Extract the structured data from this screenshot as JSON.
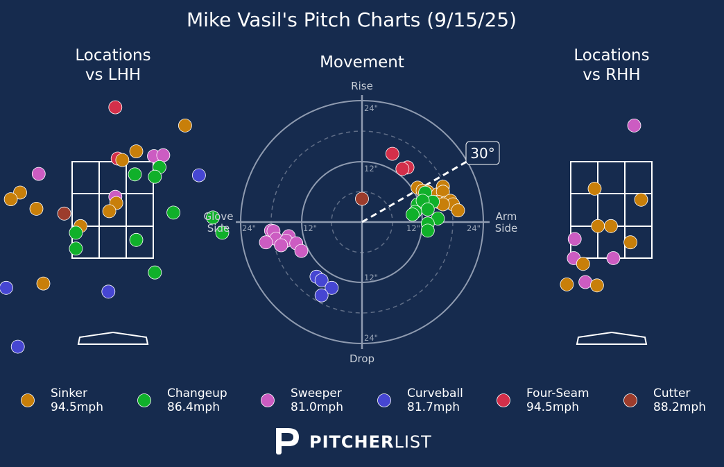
{
  "chart_data": {
    "type": "scatter",
    "title": "Mike Vasil's Pitch Charts (9/15/25)",
    "colors": {
      "background": "#162b4e",
      "Sinker": "#c87f0a",
      "Changeup": "#10b02a",
      "Sweeper": "#cc5cc2",
      "Curveball": "#4646d2",
      "Four-Seam": "#d32f4a",
      "Cutter": "#9c3c2c"
    },
    "legend": [
      {
        "pitch": "Sinker",
        "velo": "94.5mph"
      },
      {
        "pitch": "Changeup",
        "velo": "86.4mph"
      },
      {
        "pitch": "Sweeper",
        "velo": "81.0mph"
      },
      {
        "pitch": "Curveball",
        "velo": "81.7mph"
      },
      {
        "pitch": "Four-Seam",
        "velo": "94.5mph"
      },
      {
        "pitch": "Cutter",
        "velo": "88.2mph"
      }
    ],
    "brand": {
      "bold": "PITCHER",
      "light": "LIST"
    },
    "locations_lhh": {
      "title_line1": "Locations",
      "title_line2": "vs LHH",
      "points": [
        {
          "pitch": "Four-Seam",
          "x": 0.05,
          "y": 4.65
        },
        {
          "pitch": "Sinker",
          "x": 1.55,
          "y": 4.27
        },
        {
          "pitch": "Sinker",
          "x": 0.5,
          "y": 3.73
        },
        {
          "pitch": "Sweeper",
          "x": 0.88,
          "y": 3.63
        },
        {
          "pitch": "Sweeper",
          "x": 1.08,
          "y": 3.65
        },
        {
          "pitch": "Four-Seam",
          "x": 0.1,
          "y": 3.58
        },
        {
          "pitch": "Sinker",
          "x": 0.2,
          "y": 3.55
        },
        {
          "pitch": "Changeup",
          "x": 1.0,
          "y": 3.4
        },
        {
          "pitch": "Changeup",
          "x": 0.47,
          "y": 3.25
        },
        {
          "pitch": "Changeup",
          "x": 0.9,
          "y": 3.2
        },
        {
          "pitch": "Sweeper",
          "x": -1.6,
          "y": 3.26
        },
        {
          "pitch": "Curveball",
          "x": 1.85,
          "y": 3.23
        },
        {
          "pitch": "Sinker",
          "x": -2.0,
          "y": 2.87
        },
        {
          "pitch": "Sinker",
          "x": -2.2,
          "y": 2.73
        },
        {
          "pitch": "Sweeper",
          "x": 0.05,
          "y": 2.78
        },
        {
          "pitch": "Sinker",
          "x": 0.07,
          "y": 2.65
        },
        {
          "pitch": "Sinker",
          "x": -1.65,
          "y": 2.53
        },
        {
          "pitch": "Sinker",
          "x": -0.08,
          "y": 2.48
        },
        {
          "pitch": "Cutter",
          "x": -1.05,
          "y": 2.43
        },
        {
          "pitch": "Changeup",
          "x": 1.3,
          "y": 2.45
        },
        {
          "pitch": "Changeup",
          "x": 2.15,
          "y": 2.35
        },
        {
          "pitch": "Sinker",
          "x": -0.7,
          "y": 2.17
        },
        {
          "pitch": "Changeup",
          "x": -0.8,
          "y": 2.03
        },
        {
          "pitch": "Changeup",
          "x": 2.35,
          "y": 2.03
        },
        {
          "pitch": "Changeup",
          "x": 0.5,
          "y": 1.88
        },
        {
          "pitch": "Changeup",
          "x": -0.8,
          "y": 1.7
        },
        {
          "pitch": "Changeup",
          "x": 0.9,
          "y": 1.2
        },
        {
          "pitch": "Sinker",
          "x": -1.5,
          "y": 0.97
        },
        {
          "pitch": "Curveball",
          "x": -2.3,
          "y": 0.88
        },
        {
          "pitch": "Curveball",
          "x": -0.1,
          "y": 0.8
        },
        {
          "pitch": "Curveball",
          "x": -2.05,
          "y": -0.35
        }
      ]
    },
    "movement": {
      "title": "Movement",
      "labels": {
        "top": "Rise",
        "bottom": "Drop",
        "left_line1": "Glove",
        "left_line2": "Side",
        "right_line1": "Arm",
        "right_line2": "Side"
      },
      "ring_labels": {
        "r12": "12\"",
        "r24": "24\""
      },
      "arm_angle": 30,
      "arm_angle_label": "30°",
      "points": [
        {
          "pitch": "Four-Seam",
          "x": 6.0,
          "y": 13.5
        },
        {
          "pitch": "Four-Seam",
          "x": 9.0,
          "y": 10.8
        },
        {
          "pitch": "Four-Seam",
          "x": 8.0,
          "y": 10.5
        },
        {
          "pitch": "Cutter",
          "x": 0.0,
          "y": 4.6
        },
        {
          "pitch": "Sinker",
          "x": 11.0,
          "y": 6.8
        },
        {
          "pitch": "Sinker",
          "x": 12.0,
          "y": 6.2
        },
        {
          "pitch": "Sinker",
          "x": 13.0,
          "y": 6.0
        },
        {
          "pitch": "Sinker",
          "x": 15.0,
          "y": 5.5
        },
        {
          "pitch": "Sinker",
          "x": 16.0,
          "y": 7.0
        },
        {
          "pitch": "Sinker",
          "x": 16.0,
          "y": 6.0
        },
        {
          "pitch": "Sinker",
          "x": 15.0,
          "y": 4.0
        },
        {
          "pitch": "Sinker",
          "x": 16.5,
          "y": 3.8
        },
        {
          "pitch": "Sinker",
          "x": 17.5,
          "y": 4.2
        },
        {
          "pitch": "Sinker",
          "x": 18.0,
          "y": 3.5
        },
        {
          "pitch": "Sinker",
          "x": 19.0,
          "y": 2.3
        },
        {
          "pitch": "Sinker",
          "x": 16.0,
          "y": 3.5
        },
        {
          "pitch": "Changeup",
          "x": 12.5,
          "y": 5.8
        },
        {
          "pitch": "Changeup",
          "x": 14.0,
          "y": 4.0
        },
        {
          "pitch": "Changeup",
          "x": 11.0,
          "y": 3.5
        },
        {
          "pitch": "Changeup",
          "x": 12.0,
          "y": 4.2
        },
        {
          "pitch": "Changeup",
          "x": 13.0,
          "y": 2.5
        },
        {
          "pitch": "Changeup",
          "x": 10.5,
          "y": 2.0
        },
        {
          "pitch": "Changeup",
          "x": 10.0,
          "y": 1.5
        },
        {
          "pitch": "Changeup",
          "x": 15.0,
          "y": 0.7
        },
        {
          "pitch": "Changeup",
          "x": 13.0,
          "y": -0.3
        },
        {
          "pitch": "Changeup",
          "x": 13.0,
          "y": -1.7
        },
        {
          "pitch": "Sweeper",
          "x": -18.0,
          "y": -1.7
        },
        {
          "pitch": "Sweeper",
          "x": -17.5,
          "y": -1.8
        },
        {
          "pitch": "Sweeper",
          "x": -14.5,
          "y": -2.8
        },
        {
          "pitch": "Sweeper",
          "x": -17.0,
          "y": -3.3
        },
        {
          "pitch": "Sweeper",
          "x": -15.0,
          "y": -3.7
        },
        {
          "pitch": "Sweeper",
          "x": -13.0,
          "y": -4.2
        },
        {
          "pitch": "Sweeper",
          "x": -16.0,
          "y": -4.6
        },
        {
          "pitch": "Sweeper",
          "x": -19.0,
          "y": -4.0
        },
        {
          "pitch": "Sweeper",
          "x": -12.0,
          "y": -5.7
        },
        {
          "pitch": "Curveball",
          "x": -9.0,
          "y": -10.8
        },
        {
          "pitch": "Curveball",
          "x": -8.0,
          "y": -11.5
        },
        {
          "pitch": "Curveball",
          "x": -6.0,
          "y": -13.0
        },
        {
          "pitch": "Curveball",
          "x": -8.0,
          "y": -14.5
        }
      ]
    },
    "locations_rhh": {
      "title_line1": "Locations",
      "title_line2": "vs RHH",
      "points": [
        {
          "pitch": "Sweeper",
          "x": 0.5,
          "y": 4.27
        },
        {
          "pitch": "Sinker",
          "x": -0.35,
          "y": 2.95
        },
        {
          "pitch": "Sinker",
          "x": 0.65,
          "y": 2.72
        },
        {
          "pitch": "Sinker",
          "x": -0.28,
          "y": 2.17
        },
        {
          "pitch": "Sinker",
          "x": 0.0,
          "y": 2.17
        },
        {
          "pitch": "Sweeper",
          "x": -0.78,
          "y": 1.9
        },
        {
          "pitch": "Sinker",
          "x": 0.42,
          "y": 1.83
        },
        {
          "pitch": "Sweeper",
          "x": -0.8,
          "y": 1.5
        },
        {
          "pitch": "Sweeper",
          "x": 0.05,
          "y": 1.5
        },
        {
          "pitch": "Sinker",
          "x": -0.6,
          "y": 1.38
        },
        {
          "pitch": "Sinker",
          "x": -0.95,
          "y": 0.95
        },
        {
          "pitch": "Sweeper",
          "x": -0.55,
          "y": 1.0
        },
        {
          "pitch": "Sinker",
          "x": -0.3,
          "y": 0.93
        }
      ]
    }
  }
}
